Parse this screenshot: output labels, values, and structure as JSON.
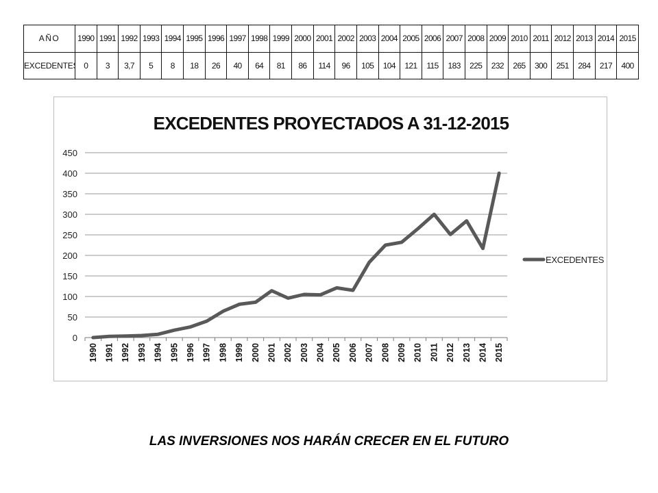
{
  "table": {
    "row1_label": "AÑO",
    "row2_label": "EXCEDENTES",
    "years": [
      "1990",
      "1991",
      "1992",
      "1993",
      "1994",
      "1995",
      "1996",
      "1997",
      "1998",
      "1999",
      "2000",
      "2001",
      "2002",
      "2003",
      "2004",
      "2005",
      "2006",
      "2007",
      "2008",
      "2009",
      "2010",
      "2011",
      "2012",
      "2013",
      "2014",
      "2015"
    ],
    "values": [
      "0",
      "3",
      "3,7",
      "5",
      "8",
      "18",
      "26",
      "40",
      "64",
      "81",
      "86",
      "114",
      "96",
      "105",
      "104",
      "121",
      "115",
      "183",
      "225",
      "232",
      "265",
      "300",
      "251",
      "284",
      "217",
      "400"
    ]
  },
  "chart_data": {
    "type": "line",
    "title": "EXCEDENTES PROYECTADOS A 31-12-2015",
    "categories": [
      "1990",
      "1991",
      "1992",
      "1993",
      "1994",
      "1995",
      "1996",
      "1997",
      "1998",
      "1999",
      "2000",
      "2001",
      "2002",
      "2003",
      "2004",
      "2005",
      "2006",
      "2007",
      "2008",
      "2009",
      "2010",
      "2011",
      "2012",
      "2013",
      "2014",
      "2015"
    ],
    "series": [
      {
        "name": "EXCEDENTES",
        "values": [
          0,
          3,
          3.7,
          5,
          8,
          18,
          26,
          40,
          64,
          81,
          86,
          114,
          96,
          105,
          104,
          121,
          115,
          183,
          225,
          232,
          265,
          300,
          251,
          284,
          217,
          400
        ],
        "color": "#595959"
      }
    ],
    "ylim": [
      0,
      450
    ],
    "yticks": [
      0,
      50,
      100,
      150,
      200,
      250,
      300,
      350,
      400,
      450
    ],
    "grid": true,
    "legend": "right"
  },
  "footer": {
    "text": "LAS INVERSIONES  NOS HARÁN CRECER EN EL FUTURO"
  }
}
